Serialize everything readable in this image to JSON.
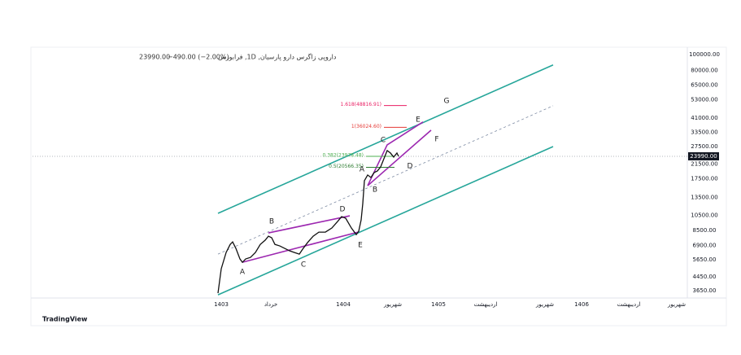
{
  "chart_data": {
    "type": "line",
    "title": "داروپی زاگرس دارو پارسیان, 1D, فرابورس",
    "last_label": "23990.00",
    "change_label": "−490.00 (−2.00%)",
    "brand": "TradingView",
    "log_scale": true,
    "xlim": [
      0,
      805
    ],
    "xticks": [
      {
        "value": 232,
        "label": "1403"
      },
      {
        "value": 293,
        "label": "خرداد"
      },
      {
        "value": 382,
        "label": "1404"
      },
      {
        "value": 443,
        "label": "شهریور"
      },
      {
        "value": 499,
        "label": "1405"
      },
      {
        "value": 557,
        "label": "اردیبهشت"
      },
      {
        "value": 630,
        "label": "شهریور"
      },
      {
        "value": 675,
        "label": "1406"
      },
      {
        "value": 733,
        "label": "اردیبهشت"
      },
      {
        "value": 792,
        "label": "شهریور"
      }
    ],
    "ylim": [
      3300,
      108000
    ],
    "yticks": [
      {
        "value": 100000,
        "label": "100000.00"
      },
      {
        "value": 80000,
        "label": "80000.00"
      },
      {
        "value": 65000,
        "label": "65000.00"
      },
      {
        "value": 53000,
        "label": "53000.00"
      },
      {
        "value": 41000,
        "label": "41000.00"
      },
      {
        "value": 33500,
        "label": "33500.00"
      },
      {
        "value": 27500,
        "label": "27500.00"
      },
      {
        "value": 21500,
        "label": "21500.00"
      },
      {
        "value": 17500,
        "label": "17500.00"
      },
      {
        "value": 13500,
        "label": "13500.00"
      },
      {
        "value": 10500,
        "label": "10500.00"
      },
      {
        "value": 8500,
        "label": "8500.00"
      },
      {
        "value": 6900,
        "label": "6900.00"
      },
      {
        "value": 5650,
        "label": "5650.00"
      },
      {
        "value": 4450,
        "label": "4450.00"
      },
      {
        "value": 3650,
        "label": "3650.00"
      }
    ],
    "last_price": {
      "value": 23990,
      "label": "23990.00"
    },
    "series": [
      {
        "color": "#111111",
        "x": [
          228,
          232,
          238,
          243,
          246,
          250,
          255,
          258,
          262,
          268,
          274,
          280,
          286,
          290,
          294,
          298,
          304,
          310,
          316,
          322,
          328,
          332,
          338,
          345,
          352,
          360,
          368,
          375,
          380,
          385,
          392,
          398,
          401,
          404,
          406,
          408,
          412,
          416,
          420,
          424,
          428,
          432,
          436,
          440,
          444,
          448,
          450
        ],
        "values": [
          3530,
          4970,
          6240,
          6990,
          7240,
          6610,
          5700,
          5440,
          5700,
          5830,
          6240,
          6990,
          7410,
          7840,
          7670,
          6990,
          6840,
          6610,
          6390,
          6240,
          6100,
          6530,
          7160,
          7840,
          8300,
          8300,
          8790,
          9630,
          10310,
          10080,
          8790,
          8020,
          8400,
          9850,
          12380,
          17050,
          18470,
          17840,
          19110,
          19550,
          20700,
          23200,
          26000,
          25130,
          23740,
          25130,
          23990
        ]
      }
    ],
    "drawings": [
      {
        "color": "#26a69a",
        "x": [
          228,
          640
        ],
        "y": [
          10800,
          86200
        ]
      },
      {
        "color": "#26a69a",
        "x": [
          228,
          640
        ],
        "y": [
          3450,
          27500
        ]
      },
      {
        "color": "#7e8ba3",
        "dashed": true,
        "x": [
          228,
          640
        ],
        "y": [
          6100,
          48700
        ]
      },
      {
        "color": "#9c27b0",
        "x": [
          290,
          390
        ],
        "y": [
          8210,
          10430
        ]
      },
      {
        "color": "#9c27b0",
        "x": [
          258,
          400
        ],
        "y": [
          5440,
          8300
        ]
      },
      {
        "color": "#9c27b0",
        "x": [
          412,
          436,
          480
        ],
        "y": [
          15900,
          28160,
          38800
        ]
      },
      {
        "color": "#9c27b0",
        "x": [
          412,
          490
        ],
        "y": [
          15900,
          34600
        ]
      }
    ],
    "fib_levels": [
      {
        "label": "1.618(48816.91)",
        "price": 48816.91,
        "color": "#e91e63",
        "x": [
          432,
          460
        ]
      },
      {
        "label": "1(36024.60)",
        "price": 36024.6,
        "color": "#e53935",
        "x": [
          432,
          460
        ]
      },
      {
        "label": "0.382(23978.48)",
        "price": 23978.48,
        "color": "#4caf50",
        "x": [
          410,
          445
        ]
      },
      {
        "label": "0.5(20566.35)",
        "price": 20566.35,
        "color": "#2e7d32",
        "x": [
          410,
          445
        ]
      }
    ],
    "wave_labels": [
      {
        "text": "A",
        "x": 258,
        "price": 4750
      },
      {
        "text": "B",
        "x": 294,
        "price": 9630
      },
      {
        "text": "C",
        "x": 333,
        "price": 5260
      },
      {
        "text": "D",
        "x": 381,
        "price": 11430
      },
      {
        "text": "E",
        "x": 403,
        "price": 6920
      },
      {
        "text": "A",
        "x": 405,
        "price": 20000
      },
      {
        "text": "B",
        "x": 421,
        "price": 15030
      },
      {
        "text": "C",
        "x": 431,
        "price": 30160
      },
      {
        "text": "D",
        "x": 464,
        "price": 20930
      },
      {
        "text": "E",
        "x": 474,
        "price": 40130
      },
      {
        "text": "F",
        "x": 497,
        "price": 30500
      },
      {
        "text": "G",
        "x": 509,
        "price": 52170
      }
    ]
  }
}
